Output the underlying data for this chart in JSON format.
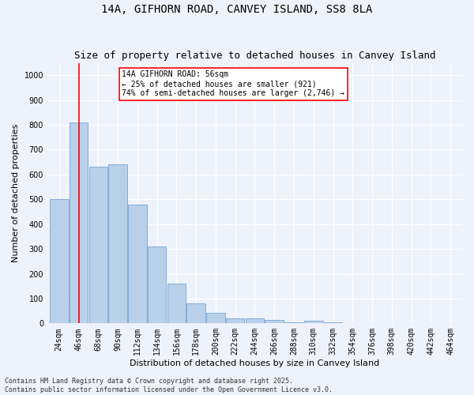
{
  "title": "14A, GIFHORN ROAD, CANVEY ISLAND, SS8 8LA",
  "subtitle": "Size of property relative to detached houses in Canvey Island",
  "xlabel": "Distribution of detached houses by size in Canvey Island",
  "ylabel": "Number of detached properties",
  "categories": [
    "24sqm",
    "46sqm",
    "68sqm",
    "90sqm",
    "112sqm",
    "134sqm",
    "156sqm",
    "178sqm",
    "200sqm",
    "222sqm",
    "244sqm",
    "266sqm",
    "288sqm",
    "310sqm",
    "332sqm",
    "354sqm",
    "376sqm",
    "398sqm",
    "420sqm",
    "442sqm",
    "464sqm"
  ],
  "bar_values": [
    500,
    810,
    630,
    640,
    480,
    310,
    160,
    80,
    42,
    20,
    20,
    15,
    5,
    10,
    4,
    2,
    1,
    0,
    0,
    0,
    0
  ],
  "bar_color": "#b8d0ea",
  "bar_edge_color": "#6699cc",
  "vline_x_index": 1,
  "vline_color": "red",
  "annotation_text": "14A GIFHORN ROAD: 56sqm\n← 25% of detached houses are smaller (921)\n74% of semi-detached houses are larger (2,746) →",
  "annotation_box_color": "white",
  "annotation_box_edge_color": "red",
  "ylim": [
    0,
    1050
  ],
  "yticks": [
    0,
    100,
    200,
    300,
    400,
    500,
    600,
    700,
    800,
    900,
    1000
  ],
  "footer": "Contains HM Land Registry data © Crown copyright and database right 2025.\nContains public sector information licensed under the Open Government Licence v3.0.",
  "bg_color": "#eef2fb",
  "grid_color": "#ffffff",
  "title_fontsize": 10,
  "subtitle_fontsize": 9,
  "axis_label_fontsize": 8,
  "tick_fontsize": 7,
  "footer_fontsize": 6,
  "annotation_fontsize": 7
}
